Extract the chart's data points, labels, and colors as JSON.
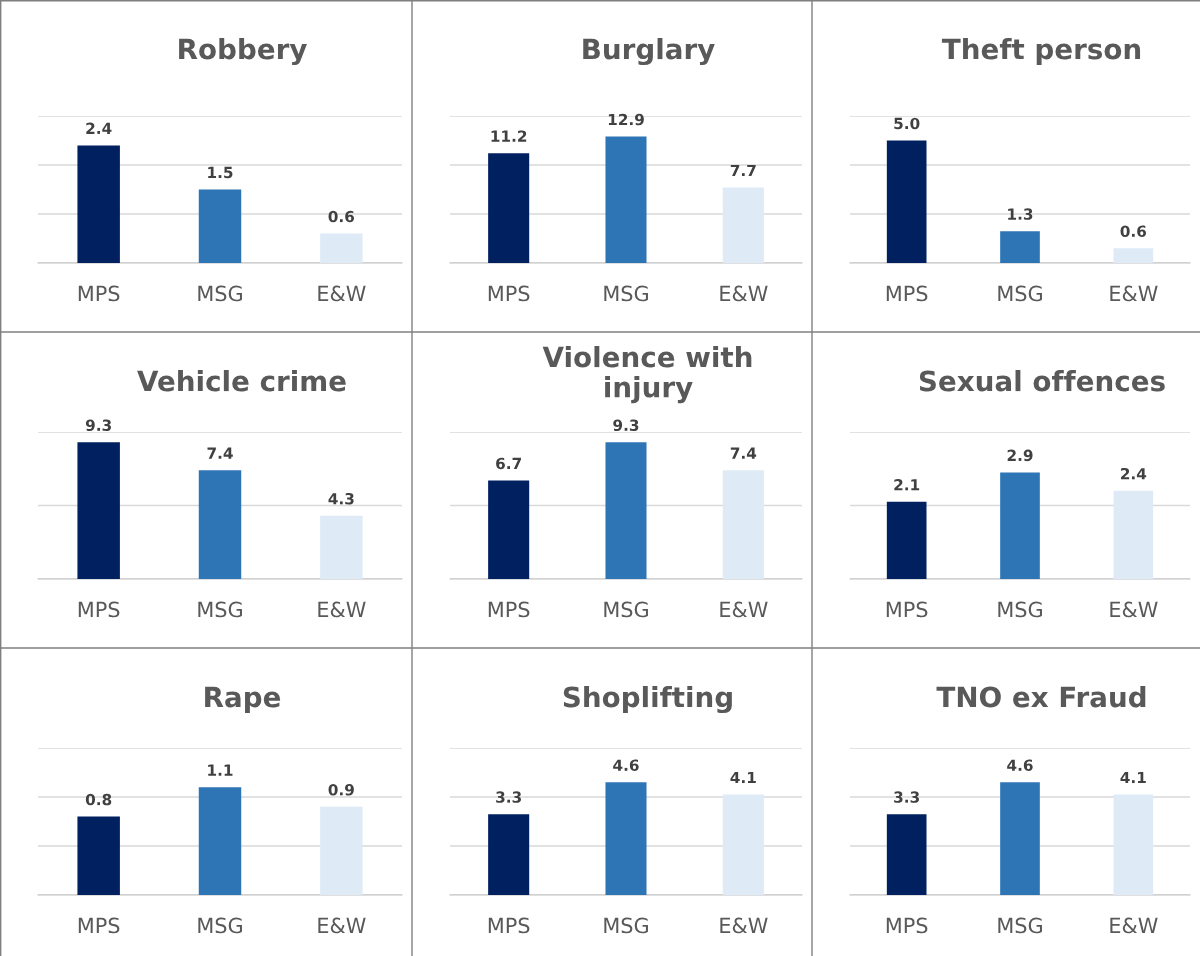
{
  "chart_data": [
    {
      "type": "bar",
      "title": "Robbery",
      "categories": [
        "MPS",
        "MSG",
        "E&W"
      ],
      "values": [
        2.4,
        1.5,
        0.6
      ],
      "colors": [
        "#002060",
        "#2e75b6",
        "#deebf7"
      ],
      "ylim": [
        0,
        3
      ],
      "yticks": [
        {
          "value": 0,
          "label": null
        },
        {
          "value": 1,
          "label": null
        },
        {
          "value": 2,
          "label": null
        },
        {
          "value": 3,
          "label": null
        }
      ],
      "data_labels": true,
      "grid": "y",
      "tick_labels": "x"
    },
    {
      "type": "bar",
      "title": "Burglary",
      "categories": [
        "MPS",
        "MSG",
        "E&W"
      ],
      "values": [
        11.2,
        12.9,
        7.7
      ],
      "colors": [
        "#002060",
        "#2e75b6",
        "#deebf7"
      ],
      "ylim": [
        0,
        15
      ],
      "yticks": [
        {
          "value": 0,
          "label": null
        },
        {
          "value": 5,
          "label": null
        },
        {
          "value": 10,
          "label": null
        },
        {
          "value": 15,
          "label": null
        }
      ],
      "data_labels": true,
      "grid": "y",
      "tick_labels": "x"
    },
    {
      "type": "bar",
      "title": "Theft person",
      "categories": [
        "MPS",
        "MSG",
        "E&W"
      ],
      "values": [
        5.0,
        1.3,
        0.6
      ],
      "value_labels": [
        "5.0",
        "1.3",
        "0.6"
      ],
      "colors": [
        "#002060",
        "#2e75b6",
        "#deebf7"
      ],
      "ylim": [
        0,
        6
      ],
      "yticks": [
        {
          "value": 0,
          "label": null
        },
        {
          "value": 2,
          "label": null
        },
        {
          "value": 4,
          "label": null
        },
        {
          "value": 6,
          "label": null
        }
      ],
      "grid": "y",
      "tick_labels": "x"
    },
    {
      "type": "bar",
      "title": "Vehicle crime",
      "categories": [
        "MPS",
        "MSG",
        "E&W"
      ],
      "values": [
        9.3,
        7.4,
        4.3
      ],
      "colors": [
        "#002060",
        "#2e75b6",
        "#deebf7"
      ],
      "ylim": [
        0,
        10
      ],
      "yticks": [
        {
          "value": 0,
          "label": null
        },
        {
          "value": 5,
          "label": null
        },
        {
          "value": 10,
          "label": null
        }
      ],
      "data_labels": true,
      "grid": "y",
      "tick_labels": "x"
    },
    {
      "type": "bar",
      "title": "Violence with injury",
      "categories": [
        "MPS",
        "MSG",
        "E&W"
      ],
      "values": [
        6.7,
        9.3,
        7.4
      ],
      "colors": [
        "#002060",
        "#2e75b6",
        "#deebf7"
      ],
      "ylim": [
        0,
        10
      ],
      "yticks": [
        {
          "value": 0,
          "label": null
        },
        {
          "value": 5,
          "label": null
        },
        {
          "value": 10,
          "label": null
        }
      ],
      "data_labels": true,
      "grid": "y",
      "tick_labels": "x"
    },
    {
      "type": "bar",
      "title": "Sexual offences",
      "categories": [
        "MPS",
        "MSG",
        "E&W"
      ],
      "values": [
        2.1,
        2.9,
        2.4
      ],
      "colors": [
        "#002060",
        "#2e75b6",
        "#deebf7"
      ],
      "ylim": [
        0,
        4
      ],
      "yticks": [
        {
          "value": 0,
          "label": null
        },
        {
          "value": 2,
          "label": null
        },
        {
          "value": 4,
          "label": null
        }
      ],
      "data_labels": true,
      "grid": "y",
      "tick_labels": "x"
    },
    {
      "type": "bar",
      "title": "Rape",
      "categories": [
        "MPS",
        "MSG",
        "E&W"
      ],
      "values": [
        0.8,
        1.1,
        0.9
      ],
      "colors": [
        "#002060",
        "#2e75b6",
        "#deebf7"
      ],
      "ylim": [
        0,
        1.5
      ],
      "yticks": [
        {
          "value": 0,
          "label": null
        },
        {
          "value": 0.5,
          "label": null
        },
        {
          "value": 1,
          "label": null
        },
        {
          "value": 1.5,
          "label": null
        }
      ],
      "data_labels": true,
      "grid": "y",
      "tick_labels": "x"
    },
    {
      "type": "bar",
      "title": "Shoplifting",
      "categories": [
        "MPS",
        "MSG",
        "E&W"
      ],
      "values": [
        3.3,
        4.6,
        4.1
      ],
      "colors": [
        "#002060",
        "#2e75b6",
        "#deebf7"
      ],
      "ylim": [
        0,
        6
      ],
      "yticks": [
        {
          "value": 0,
          "label": null
        },
        {
          "value": 2,
          "label": null
        },
        {
          "value": 4,
          "label": null
        },
        {
          "value": 6,
          "label": null
        }
      ],
      "data_labels": true,
      "grid": "y",
      "tick_labels": "x"
    },
    {
      "type": "bar",
      "title": "TNO ex Fraud",
      "categories": [
        "MPS",
        "MSG",
        "E&W"
      ],
      "values": [
        3.3,
        4.6,
        4.1
      ],
      "colors": [
        "#002060",
        "#2e75b6",
        "#deebf7"
      ],
      "ylim": [
        0,
        6
      ],
      "yticks": [
        {
          "value": 0,
          "label": null
        },
        {
          "value": 2,
          "label": null
        },
        {
          "value": 4,
          "label": null
        },
        {
          "value": 6,
          "label": null
        }
      ],
      "data_labels": true,
      "grid": "y",
      "tick_labels": "x"
    }
  ]
}
